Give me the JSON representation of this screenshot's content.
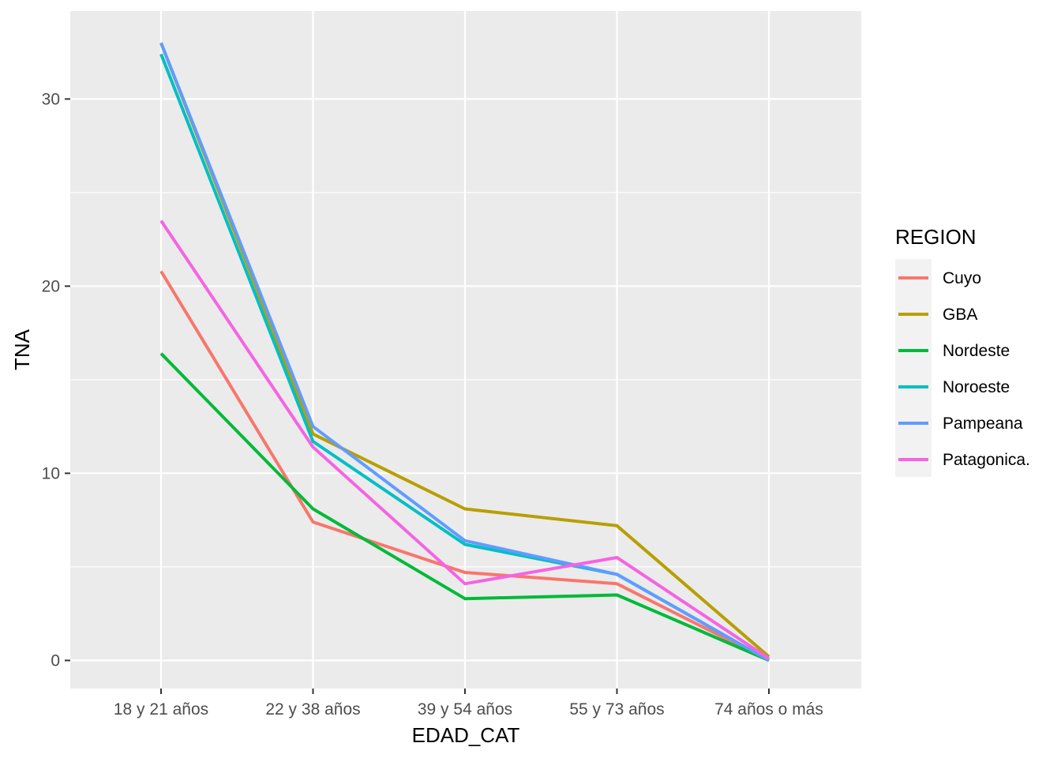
{
  "chart_data": {
    "type": "line",
    "xlabel": "EDAD_CAT",
    "ylabel": "TNA",
    "categories": [
      "18 y 21 años",
      "22 y 38 años",
      "39 y 54 años",
      "55 y 73 años",
      "74 años o más"
    ],
    "ylim": [
      -1.5,
      34.7
    ],
    "yticks": [
      0,
      10,
      20,
      30
    ],
    "grid": true,
    "legend": {
      "title": "REGION",
      "position": "right"
    },
    "series": [
      {
        "name": "Cuyo",
        "color": "#F8766D",
        "values": [
          20.8,
          7.4,
          4.7,
          4.1,
          0.0
        ]
      },
      {
        "name": "GBA",
        "color": "#B79F00",
        "values": [
          33.0,
          12.1,
          8.1,
          7.2,
          0.2
        ]
      },
      {
        "name": "Nordeste",
        "color": "#00BA38",
        "values": [
          16.4,
          8.1,
          3.3,
          3.5,
          0.0
        ]
      },
      {
        "name": "Noroeste",
        "color": "#00BFC4",
        "values": [
          32.4,
          11.7,
          6.2,
          4.6,
          0.0
        ]
      },
      {
        "name": "Pampeana",
        "color": "#619CFF",
        "values": [
          33.0,
          12.5,
          6.4,
          4.6,
          0.0
        ]
      },
      {
        "name": "Patagonica.",
        "color": "#F564E3",
        "values": [
          23.5,
          11.4,
          4.1,
          5.5,
          0.1
        ]
      }
    ]
  }
}
